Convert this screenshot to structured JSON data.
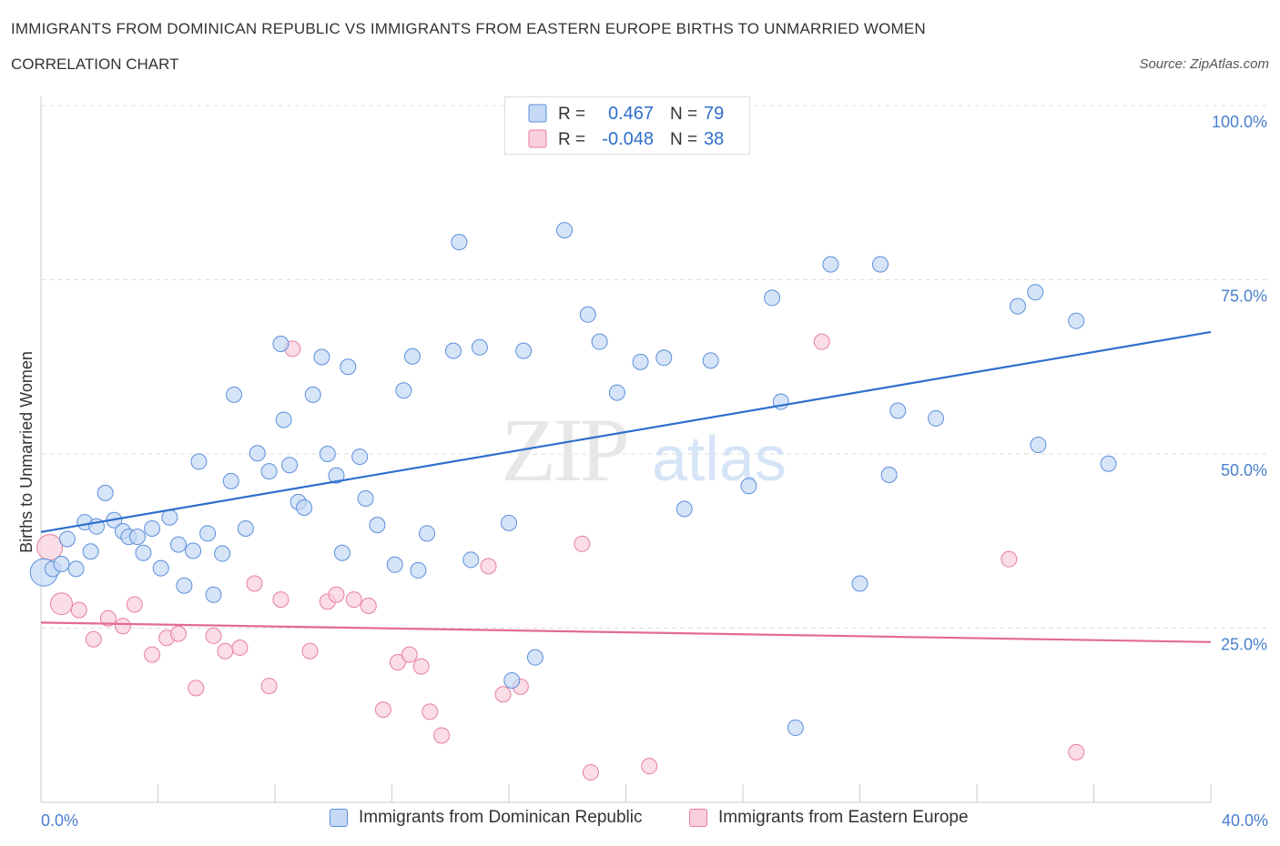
{
  "header": {
    "title": "IMMIGRANTS FROM DOMINICAN REPUBLIC VS IMMIGRANTS FROM EASTERN EUROPE BIRTHS TO UNMARRIED WOMEN",
    "subtitle": "CORRELATION CHART",
    "source": "Source: ZipAtlas.com"
  },
  "watermark": {
    "zip": "ZIP",
    "atlas": "atlas"
  },
  "colors": {
    "blue": "#5b8fdb",
    "blue_fill": "#c5d9f5",
    "blue_line": "#2e6fcc",
    "pink": "#e87ea1",
    "pink_fill": "#f8cfdc",
    "pink_line": "#e26b95",
    "axis_text": "#4a7fcc"
  },
  "legend": {
    "rows": [
      {
        "r_label": "R =",
        "r_value": "0.467",
        "n_label": "N =",
        "n_value": "79"
      },
      {
        "r_label": "R =",
        "r_value": "-0.048",
        "n_label": "N =",
        "n_value": "38"
      }
    ]
  },
  "bottom_legend": {
    "series1": "Immigrants from Dominican Republic",
    "series2": "Immigrants from Eastern Europe"
  },
  "chart_data": {
    "type": "scatter",
    "xlabel": "",
    "ylabel": "Births to Unmarried Women",
    "xlim": [
      0,
      40
    ],
    "ylim": [
      0,
      100
    ],
    "x_tick_labels": [
      "0.0%",
      "40.0%"
    ],
    "y_tick_labels": [
      "25.0%",
      "50.0%",
      "75.0%",
      "100.0%"
    ],
    "y_ticks": [
      25,
      50,
      75,
      100
    ],
    "grid": true,
    "series": [
      {
        "name": "Immigrants from Dominican Republic",
        "color": "#5b8fdb",
        "trend": {
          "x": [
            0,
            40
          ],
          "y": [
            38.8,
            67.5
          ]
        },
        "points": [
          [
            0.1,
            33
          ],
          [
            0.4,
            33.5
          ],
          [
            0.7,
            34.2
          ],
          [
            0.9,
            37.8
          ],
          [
            1.2,
            33.5
          ],
          [
            1.5,
            40.2
          ],
          [
            1.7,
            36
          ],
          [
            1.9,
            39.6
          ],
          [
            2.2,
            44.4
          ],
          [
            2.5,
            40.5
          ],
          [
            2.8,
            38.9
          ],
          [
            3.0,
            38.1
          ],
          [
            3.3,
            38.1
          ],
          [
            3.5,
            35.8
          ],
          [
            3.8,
            39.3
          ],
          [
            4.1,
            33.6
          ],
          [
            4.4,
            40.9
          ],
          [
            4.7,
            37
          ],
          [
            4.9,
            31.1
          ],
          [
            5.2,
            36.1
          ],
          [
            5.4,
            48.9
          ],
          [
            5.7,
            38.6
          ],
          [
            5.9,
            29.8
          ],
          [
            6.2,
            35.7
          ],
          [
            6.5,
            46.1
          ],
          [
            6.6,
            58.5
          ],
          [
            7.0,
            39.3
          ],
          [
            7.4,
            50.1
          ],
          [
            7.8,
            47.5
          ],
          [
            8.2,
            65.8
          ],
          [
            8.3,
            54.9
          ],
          [
            8.5,
            48.4
          ],
          [
            8.8,
            43.1
          ],
          [
            9.0,
            42.3
          ],
          [
            9.3,
            58.5
          ],
          [
            9.6,
            63.9
          ],
          [
            9.8,
            50
          ],
          [
            10.1,
            46.9
          ],
          [
            10.3,
            35.8
          ],
          [
            10.5,
            62.5
          ],
          [
            10.9,
            49.6
          ],
          [
            11.1,
            43.6
          ],
          [
            11.5,
            39.8
          ],
          [
            12.1,
            34.1
          ],
          [
            12.4,
            59.1
          ],
          [
            12.7,
            64
          ],
          [
            12.9,
            33.3
          ],
          [
            13.2,
            38.6
          ],
          [
            14.3,
            80.4
          ],
          [
            14.1,
            64.8
          ],
          [
            14.7,
            34.8
          ],
          [
            15.0,
            65.3
          ],
          [
            16.0,
            40.1
          ],
          [
            16.1,
            17.5
          ],
          [
            16.5,
            64.8
          ],
          [
            16.9,
            20.8
          ],
          [
            17.9,
            82.1
          ],
          [
            18.7,
            70
          ],
          [
            19.1,
            66.1
          ],
          [
            19.7,
            58.8
          ],
          [
            20.5,
            63.2
          ],
          [
            21.3,
            63.8
          ],
          [
            22.0,
            42.1
          ],
          [
            22.9,
            63.4
          ],
          [
            24.2,
            45.4
          ],
          [
            25.0,
            72.4
          ],
          [
            25.3,
            57.5
          ],
          [
            25.8,
            10.7
          ],
          [
            27.0,
            77.2
          ],
          [
            28.0,
            31.4
          ],
          [
            28.7,
            77.2
          ],
          [
            29.0,
            47
          ],
          [
            29.3,
            56.2
          ],
          [
            30.6,
            55.1
          ],
          [
            33.4,
            71.2
          ],
          [
            34.0,
            73.2
          ],
          [
            34.1,
            51.3
          ],
          [
            35.4,
            69.1
          ],
          [
            36.5,
            48.6
          ]
        ]
      },
      {
        "name": "Immigrants from Eastern Europe",
        "color": "#e87ea1",
        "trend": {
          "x": [
            0,
            40
          ],
          "y": [
            25.8,
            23.0
          ]
        },
        "points": [
          [
            0.3,
            36.6
          ],
          [
            0.7,
            28.5
          ],
          [
            1.3,
            27.6
          ],
          [
            1.8,
            23.4
          ],
          [
            2.3,
            26.4
          ],
          [
            2.8,
            25.3
          ],
          [
            3.2,
            28.4
          ],
          [
            3.8,
            21.2
          ],
          [
            4.3,
            23.6
          ],
          [
            4.7,
            24.2
          ],
          [
            5.3,
            16.4
          ],
          [
            5.9,
            23.9
          ],
          [
            6.3,
            21.7
          ],
          [
            6.8,
            22.2
          ],
          [
            7.3,
            31.4
          ],
          [
            7.8,
            16.7
          ],
          [
            8.2,
            29.1
          ],
          [
            8.6,
            65.1
          ],
          [
            9.2,
            21.7
          ],
          [
            9.8,
            28.8
          ],
          [
            10.1,
            29.8
          ],
          [
            10.7,
            29.1
          ],
          [
            11.2,
            28.2
          ],
          [
            11.7,
            13.3
          ],
          [
            12.2,
            20.1
          ],
          [
            12.6,
            21.2
          ],
          [
            13.0,
            19.5
          ],
          [
            13.3,
            13
          ],
          [
            13.7,
            9.6
          ],
          [
            15.3,
            33.9
          ],
          [
            15.8,
            15.5
          ],
          [
            16.4,
            16.6
          ],
          [
            18.5,
            37.1
          ],
          [
            18.8,
            4.3
          ],
          [
            20.8,
            5.2
          ],
          [
            26.7,
            66.1
          ],
          [
            33.1,
            34.9
          ],
          [
            35.4,
            7.2
          ]
        ]
      }
    ]
  }
}
